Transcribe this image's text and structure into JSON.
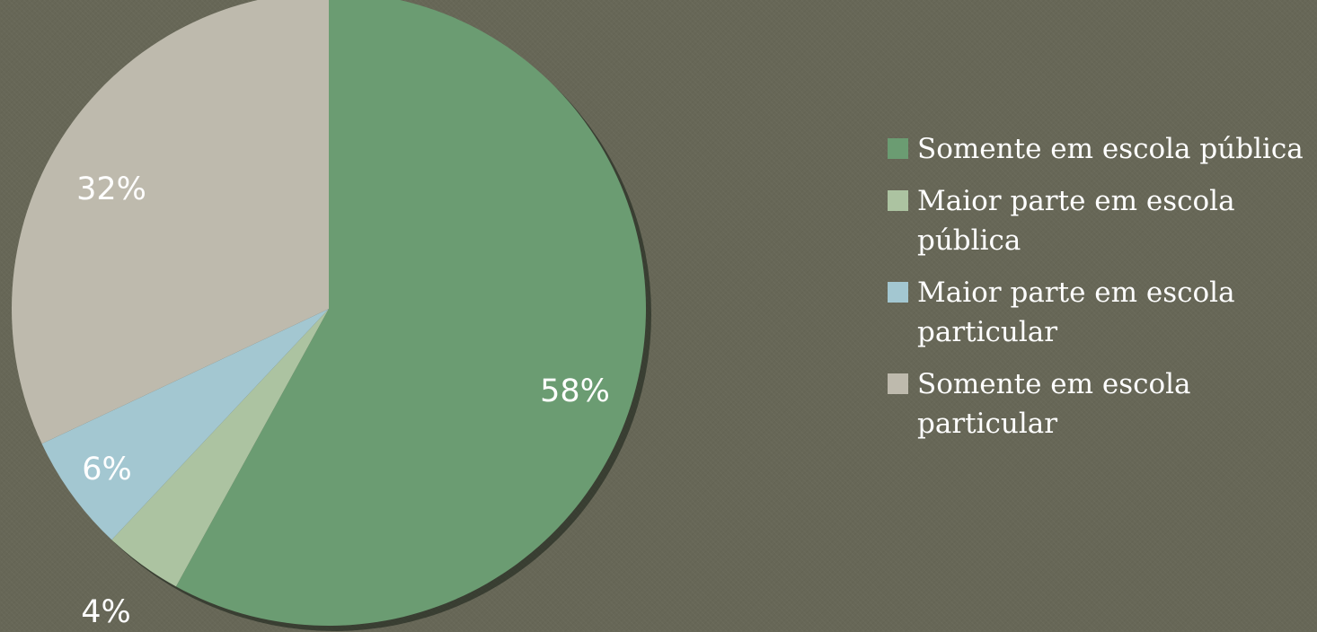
{
  "chart_data": {
    "type": "pie",
    "categories": [
      "Somente em escola pública",
      "Maior parte em escola pública",
      "Maior parte em escola particular",
      "Somente em escola particular"
    ],
    "values": [
      58,
      4,
      6,
      32
    ],
    "data_labels": [
      "58%",
      "4%",
      "6%",
      "32%"
    ],
    "colors": [
      "#6b9c72",
      "#acc3a1",
      "#a3c7d1",
      "#bebaad"
    ],
    "legend": {
      "placement": "right",
      "entries": [
        {
          "label": "Somente em escola pública",
          "color": "#6b9c72"
        },
        {
          "label": "Maior parte em escola pública",
          "color": "#acc3a1"
        },
        {
          "label": "Maior parte em escola particular",
          "color": "#a3c7d1"
        },
        {
          "label": "Somente em escola particular",
          "color": "#bebaad"
        }
      ]
    },
    "title": "",
    "start_angle": "12 o'clock",
    "direction": "clockwise"
  }
}
